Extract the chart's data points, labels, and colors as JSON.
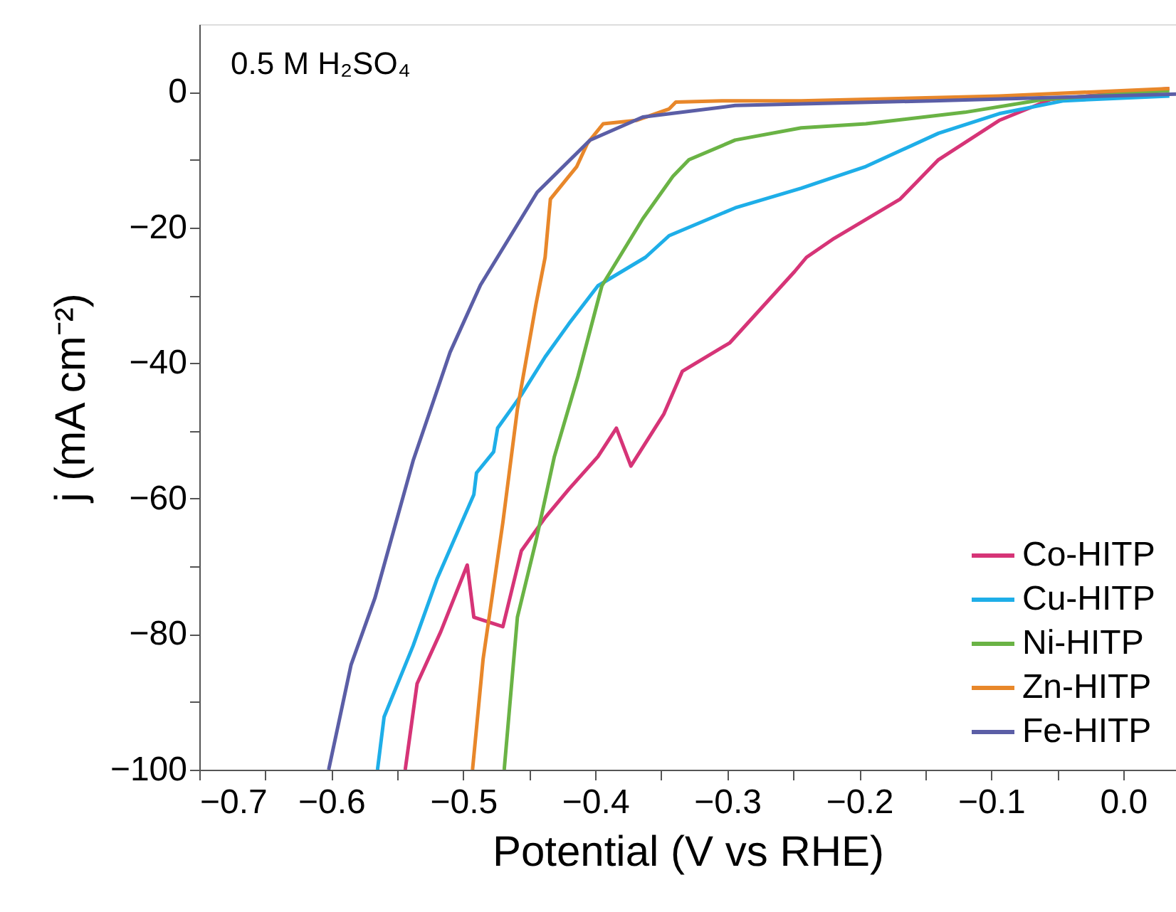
{
  "chart_data": {
    "type": "line",
    "xlabel": "Potential (V vs RHE)",
    "ylabel": "j (mA cm⁻²)",
    "annotations": [
      "0.5 M H₂SO₄"
    ],
    "xlim": [
      -0.7,
      0.04
    ],
    "ylim": [
      -100,
      10
    ],
    "xticks": [
      {
        "value": -0.7,
        "label": "−0.7"
      },
      {
        "value": -0.65,
        "label": null
      },
      {
        "value": -0.6,
        "label": "−0.6"
      },
      {
        "value": -0.55,
        "label": null
      },
      {
        "value": -0.5,
        "label": "−0.5"
      },
      {
        "value": -0.45,
        "label": null
      },
      {
        "value": -0.4,
        "label": "−0.4"
      },
      {
        "value": -0.35,
        "label": null
      },
      {
        "value": -0.3,
        "label": "−0.3"
      },
      {
        "value": -0.25,
        "label": null
      },
      {
        "value": -0.2,
        "label": "−0.2"
      },
      {
        "value": -0.15,
        "label": null
      },
      {
        "value": -0.1,
        "label": "−0.1"
      },
      {
        "value": -0.05,
        "label": null
      },
      {
        "value": 0,
        "label": "0.0"
      }
    ],
    "yticks": [
      {
        "value": -100,
        "label": "−100"
      },
      {
        "value": -90,
        "label": null
      },
      {
        "value": -80,
        "label": "−80"
      },
      {
        "value": -70,
        "label": null
      },
      {
        "value": -60,
        "label": "−60"
      },
      {
        "value": -50,
        "label": null
      },
      {
        "value": -40,
        "label": "−40"
      },
      {
        "value": -30,
        "label": null
      },
      {
        "value": -20,
        "label": "−20"
      },
      {
        "value": -10,
        "label": null
      },
      {
        "value": 0,
        "label": "0"
      }
    ],
    "grid": false,
    "legend": "bottom right",
    "marker": "none",
    "line_style": "solid",
    "series": [
      {
        "name": "Co-HITP",
        "color": "#d63477",
        "x": [
          -0.544,
          -0.535,
          -0.517,
          -0.497,
          -0.492,
          -0.47,
          -0.456,
          -0.438,
          -0.42,
          -0.398,
          -0.384,
          -0.373,
          -0.348,
          -0.334,
          -0.298,
          -0.249,
          -0.24,
          -0.219,
          -0.169,
          -0.14,
          -0.094,
          -0.055,
          0.035
        ],
        "values": [
          -100,
          -87.3,
          -79.6,
          -69.8,
          -77.5,
          -78.9,
          -67.7,
          -62.8,
          -58.6,
          -53.8,
          -49.6,
          -55.2,
          -47.5,
          -41.2,
          -37,
          -26.5,
          -24.4,
          -21.6,
          -15.8,
          -10,
          -4.2,
          -1.1,
          0.5
        ]
      },
      {
        "name": "Cu-HITP",
        "color": "#1eaee8",
        "x": [
          -0.565,
          -0.56,
          -0.538,
          -0.52,
          -0.492,
          -0.49,
          -0.477,
          -0.474,
          -0.456,
          -0.438,
          -0.42,
          -0.398,
          -0.362,
          -0.344,
          -0.294,
          -0.244,
          -0.195,
          -0.14,
          -0.094,
          -0.045,
          0.035
        ],
        "values": [
          -100,
          -92.2,
          -81.7,
          -71.9,
          -59.4,
          -56.2,
          -53.1,
          -49.6,
          -44.7,
          -39.1,
          -34.2,
          -28.6,
          -24.4,
          -21.2,
          -17.1,
          -14.2,
          -11,
          -6.1,
          -3.2,
          -1.3,
          -0.6
        ]
      },
      {
        "name": "Ni-HITP",
        "color": "#6ab345",
        "x": [
          -0.469,
          -0.459,
          -0.445,
          -0.431,
          -0.413,
          -0.395,
          -0.364,
          -0.341,
          -0.329,
          -0.294,
          -0.244,
          -0.195,
          -0.12,
          -0.06,
          0.035
        ],
        "values": [
          -100,
          -77.5,
          -66.3,
          -53.8,
          -41.9,
          -28.6,
          -18.7,
          -12.4,
          -10,
          -7.1,
          -5.3,
          -4.7,
          -3,
          -1.1,
          0.2
        ]
      },
      {
        "name": "Zn-HITP",
        "color": "#e8872a",
        "x": [
          -0.493,
          -0.485,
          -0.47,
          -0.459,
          -0.445,
          -0.438,
          -0.434,
          -0.414,
          -0.406,
          -0.394,
          -0.369,
          -0.344,
          -0.339,
          -0.304,
          -0.244,
          -0.094,
          0.035
        ],
        "values": [
          -100,
          -83.7,
          -63.5,
          -46.8,
          -31.4,
          -24.4,
          -15.8,
          -11,
          -7.6,
          -4.7,
          -4.2,
          -2.5,
          -1.5,
          -1.3,
          -1.3,
          -0.6,
          0.5
        ]
      },
      {
        "name": "Fe-HITP",
        "color": "#5b5ea6",
        "x": [
          -0.602,
          -0.585,
          -0.567,
          -0.553,
          -0.538,
          -0.51,
          -0.487,
          -0.444,
          -0.404,
          -0.364,
          -0.294,
          -0.144,
          0.005,
          0.04
        ],
        "values": [
          -100,
          -84.5,
          -74.7,
          -64.9,
          -54.4,
          -38.4,
          -28.5,
          -14.8,
          -7.1,
          -3.7,
          -2,
          -1.3,
          -0.5,
          -0.3
        ]
      }
    ]
  }
}
